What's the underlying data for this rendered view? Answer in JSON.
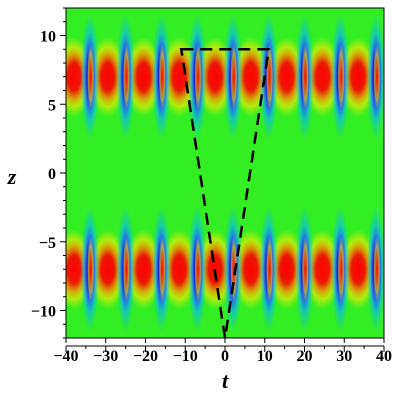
{
  "chart_data": {
    "type": "heatmap",
    "xlabel": "t",
    "ylabel": "z",
    "xlim": [
      -40,
      40
    ],
    "ylim": [
      -12,
      12
    ],
    "x_ticks": [
      -40,
      -30,
      -20,
      -10,
      0,
      10,
      20,
      30,
      40
    ],
    "y_ticks": [
      -10,
      -5,
      0,
      5,
      10
    ],
    "x_tick_labels": [
      "−40",
      "−30",
      "−20",
      "−10",
      "0",
      "10",
      "20",
      "30",
      "40"
    ],
    "y_tick_labels": [
      "−10",
      "−5",
      "0",
      "5",
      "10"
    ],
    "background_level_color": "#33ee22",
    "colormap": [
      "#0000cc",
      "#00bbff",
      "#33ee22",
      "#ffee00",
      "#ff0000"
    ],
    "upper_band": {
      "z_center": 7,
      "trough_t": [
        -34,
        -25,
        -16,
        -7,
        2,
        11,
        20,
        29,
        38
      ],
      "peak_t": [
        -38,
        -29.5,
        -20.5,
        -11.5,
        -2.5,
        6.5,
        15.5,
        24.5,
        33.5
      ]
    },
    "lower_band": {
      "z_center": -7,
      "trough_t": [
        -34,
        -25,
        -16,
        -7,
        2,
        11,
        20,
        29,
        38
      ],
      "peak_t": [
        -38,
        -29.5,
        -20.5,
        -11.5,
        -2.5,
        6.5,
        15.5,
        24.5,
        33.5
      ]
    },
    "overlay_triangle": {
      "style": "dashed",
      "vertices": [
        [
          -11,
          9
        ],
        [
          11,
          9
        ],
        [
          0,
          -12
        ]
      ]
    }
  }
}
